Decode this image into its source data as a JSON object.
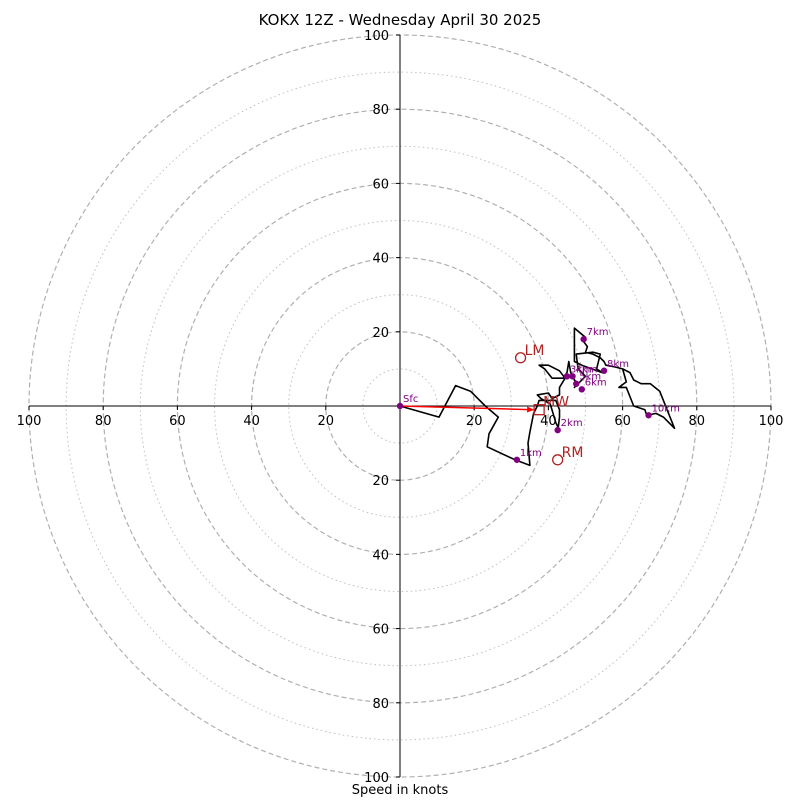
{
  "chart_data": {
    "type": "scatter",
    "subtype": "hodograph",
    "title": "KOKX 12Z - Wednesday April 30 2025",
    "xlabel": "Speed in knots",
    "ylabel": "",
    "xlim": [
      -100,
      100
    ],
    "ylim": [
      -100,
      100
    ],
    "rings_dashed": [
      20,
      40,
      60,
      80,
      100
    ],
    "rings_dotted": [
      10,
      30,
      50,
      70,
      90
    ],
    "grid": true,
    "x_ticks": [
      "100",
      "80",
      "60",
      "40",
      "20",
      "20",
      "40",
      "60",
      "80",
      "100"
    ],
    "x_tick_values": [
      -100,
      -80,
      -60,
      -40,
      -20,
      20,
      40,
      60,
      80,
      100
    ],
    "y_ticks": [
      "100",
      "80",
      "60",
      "40",
      "20",
      "20",
      "40",
      "60",
      "80",
      "100"
    ],
    "y_tick_values": [
      100,
      80,
      60,
      40,
      20,
      -20,
      -40,
      -60,
      -80,
      -100
    ],
    "colors": {
      "profile": "#000000",
      "heights": "#800080",
      "motion": "#b22222",
      "shear": "#ff0000",
      "grid": "#b0b0b0"
    },
    "series": [
      {
        "values_xy": [
          [
            0,
            0
          ],
          [
            10.5,
            -3
          ],
          [
            15,
            5.5
          ],
          [
            19,
            4
          ],
          [
            23,
            0
          ],
          [
            26.5,
            -3
          ],
          [
            24,
            -7.5
          ],
          [
            23.5,
            -11
          ],
          [
            31,
            -14.5
          ],
          [
            35,
            -16
          ],
          [
            34.5,
            -10
          ],
          [
            35,
            -7
          ],
          [
            36,
            -2
          ],
          [
            37,
            0
          ],
          [
            37.5,
            1.5
          ],
          [
            42,
            1.5
          ],
          [
            43,
            -1
          ],
          [
            43,
            -3
          ],
          [
            42.5,
            -7
          ],
          [
            43,
            -6.5
          ],
          [
            42,
            -4.5
          ],
          [
            40.5,
            0.5
          ],
          [
            38,
            2
          ],
          [
            37,
            3
          ],
          [
            40,
            3.5
          ],
          [
            41,
            2
          ],
          [
            43,
            3
          ],
          [
            43,
            5
          ],
          [
            44.5,
            7.5
          ],
          [
            43,
            9.5
          ],
          [
            40,
            11
          ],
          [
            37.5,
            11
          ],
          [
            39,
            10
          ],
          [
            41,
            7.5
          ],
          [
            44,
            7.5
          ],
          [
            45,
            9
          ],
          [
            45.5,
            12
          ],
          [
            46,
            9
          ],
          [
            47,
            7
          ],
          [
            48,
            6
          ],
          [
            47,
            5
          ],
          [
            50,
            8
          ],
          [
            48,
            10
          ],
          [
            47.5,
            14
          ],
          [
            52,
            14.5
          ],
          [
            54,
            14
          ],
          [
            53,
            10
          ],
          [
            54.5,
            9
          ],
          [
            49,
            11
          ],
          [
            47,
            12
          ],
          [
            47,
            17
          ],
          [
            47,
            21
          ],
          [
            50,
            18.5
          ],
          [
            49,
            18
          ],
          [
            50.5,
            16
          ],
          [
            50,
            14.5
          ],
          [
            52,
            14
          ],
          [
            54,
            13
          ],
          [
            55,
            12
          ],
          [
            55.5,
            11
          ],
          [
            58,
            10.5
          ],
          [
            60,
            10
          ],
          [
            62,
            9
          ],
          [
            63,
            7
          ],
          [
            65,
            6
          ],
          [
            67.5,
            6
          ],
          [
            70,
            4
          ],
          [
            74,
            -6
          ],
          [
            71,
            -3
          ],
          [
            69,
            -2
          ],
          [
            66.5,
            -2.5
          ],
          [
            66,
            -1
          ],
          [
            63,
            0
          ],
          [
            61,
            5
          ],
          [
            59,
            5
          ],
          [
            61,
            6.5
          ],
          [
            60,
            10
          ]
        ]
      }
    ],
    "height_markers": [
      {
        "label": "Sfc",
        "x": 0,
        "y": 0
      },
      {
        "label": "1km",
        "x": 31.5,
        "y": -14.5
      },
      {
        "label": "2km",
        "x": 42.5,
        "y": -6.5
      },
      {
        "label": "3km",
        "x": 45,
        "y": 8
      },
      {
        "label": "4km",
        "x": 46.5,
        "y": 8
      },
      {
        "label": "5km",
        "x": 47.5,
        "y": 6
      },
      {
        "label": "6km",
        "x": 49,
        "y": 4.5
      },
      {
        "label": "7km",
        "x": 49.5,
        "y": 18
      },
      {
        "label": "8km",
        "x": 55,
        "y": 9.5
      },
      {
        "label": "10km",
        "x": 67,
        "y": -2.5
      }
    ],
    "storm_motion": [
      {
        "label": "LM",
        "marker": "circle",
        "x": 32.5,
        "y": 13
      },
      {
        "label": "MW",
        "marker": "square",
        "x": 37.5,
        "y": -1
      },
      {
        "label": "RM",
        "marker": "circle",
        "x": 42.5,
        "y": -14.5
      }
    ],
    "shear_vector": {
      "from": [
        0,
        0
      ],
      "to": [
        37.5,
        -1
      ]
    }
  }
}
